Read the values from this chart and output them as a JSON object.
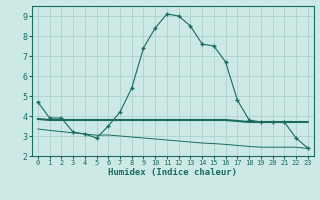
{
  "xlabel": "Humidex (Indice chaleur)",
  "ylabel": "",
  "bg_color": "#cce9e5",
  "grid_color": "#b0d4cf",
  "line_color": "#1a6b5e",
  "xlim": [
    -0.5,
    23.5
  ],
  "ylim": [
    2,
    9.5
  ],
  "xticks": [
    0,
    1,
    2,
    3,
    4,
    5,
    6,
    7,
    8,
    9,
    10,
    11,
    12,
    13,
    14,
    15,
    16,
    17,
    18,
    19,
    20,
    21,
    22,
    23
  ],
  "yticks": [
    2,
    3,
    4,
    5,
    6,
    7,
    8,
    9
  ],
  "curve1_x": [
    0,
    1,
    2,
    3,
    4,
    5,
    6,
    7,
    8,
    9,
    10,
    11,
    12,
    13,
    14,
    15,
    16,
    17,
    18,
    19,
    20,
    21,
    22,
    23
  ],
  "curve1_y": [
    4.7,
    3.9,
    3.9,
    3.2,
    3.1,
    2.9,
    3.5,
    4.2,
    5.4,
    7.4,
    8.4,
    9.1,
    9.0,
    8.5,
    7.6,
    7.5,
    6.7,
    4.8,
    3.8,
    3.7,
    3.7,
    3.7,
    2.9,
    2.4
  ],
  "curve2_x": [
    0,
    1,
    2,
    3,
    4,
    5,
    6,
    7,
    8,
    9,
    10,
    11,
    12,
    13,
    14,
    15,
    16,
    17,
    18,
    19,
    20,
    21,
    22,
    23
  ],
  "curve2_y": [
    3.85,
    3.8,
    3.8,
    3.8,
    3.8,
    3.8,
    3.8,
    3.8,
    3.8,
    3.8,
    3.8,
    3.8,
    3.8,
    3.8,
    3.8,
    3.8,
    3.8,
    3.75,
    3.7,
    3.7,
    3.7,
    3.7,
    3.7,
    3.7
  ],
  "curve3_x": [
    0,
    1,
    2,
    3,
    4,
    5,
    6,
    7,
    8,
    9,
    10,
    11,
    12,
    13,
    14,
    15,
    16,
    17,
    18,
    19,
    20,
    21,
    22,
    23
  ],
  "curve3_y": [
    3.35,
    3.28,
    3.22,
    3.16,
    3.1,
    3.04,
    3.05,
    3.0,
    2.95,
    2.9,
    2.85,
    2.8,
    2.75,
    2.7,
    2.65,
    2.62,
    2.58,
    2.53,
    2.48,
    2.44,
    2.44,
    2.44,
    2.44,
    2.38
  ]
}
